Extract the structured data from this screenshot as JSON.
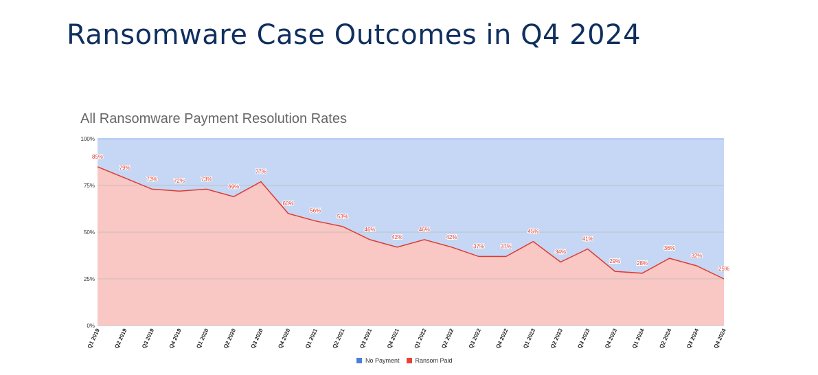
{
  "page": {
    "title": "Ransomware Case Outcomes in Q4 2024"
  },
  "colors": {
    "no_payment_fill": "#c5d7f4",
    "ransom_paid_fill": "#f9c7c4",
    "ransom_paid_line": "#e03a2f",
    "no_payment_legend": "#4a7fd9",
    "ransom_paid_legend": "#e84335"
  },
  "chart_data": {
    "type": "area",
    "title": "All Ransomware Payment Resolution Rates",
    "xlabel": "",
    "ylabel": "",
    "ylim": [
      0,
      100
    ],
    "yticks": [
      "0%",
      "25%",
      "50%",
      "75%",
      "100%"
    ],
    "grid": true,
    "legend_placement": "bottom",
    "categories": [
      "Q1 2019",
      "Q2 2019",
      "Q3 2019",
      "Q4 2019",
      "Q1 2020",
      "Q2 2020",
      "Q3 2020",
      "Q4 2020",
      "Q1 2021",
      "Q2 2021",
      "Q3 2021",
      "Q4 2021",
      "Q1 2022",
      "Q2 2022",
      "Q3 2022",
      "Q4 2022",
      "Q1 2023",
      "Q2 2023",
      "Q3 2023",
      "Q4 2023",
      "Q1 2024",
      "Q2 2024",
      "Q3 2024",
      "Q4 2024"
    ],
    "series": [
      {
        "name": "No Payment",
        "values": [
          15,
          21,
          27,
          28,
          27,
          31,
          23,
          40,
          44,
          47,
          54,
          58,
          54,
          58,
          63,
          63,
          55,
          66,
          59,
          71,
          72,
          64,
          68,
          75
        ]
      },
      {
        "name": "Ransom Paid",
        "values": [
          85,
          79,
          73,
          72,
          73,
          69,
          77,
          60,
          56,
          53,
          46,
          42,
          46,
          42,
          37,
          37,
          45,
          34,
          41,
          29,
          28,
          36,
          32,
          25
        ]
      }
    ],
    "data_labels": [
      "85%",
      "79%",
      "73%",
      "72%",
      "73%",
      "69%",
      "77%",
      "60%",
      "56%",
      "53%",
      "46%",
      "42%",
      "46%",
      "42%",
      "37%",
      "37%",
      "45%",
      "34%",
      "41%",
      "29%",
      "28%",
      "36%",
      "32%",
      "25%"
    ]
  }
}
